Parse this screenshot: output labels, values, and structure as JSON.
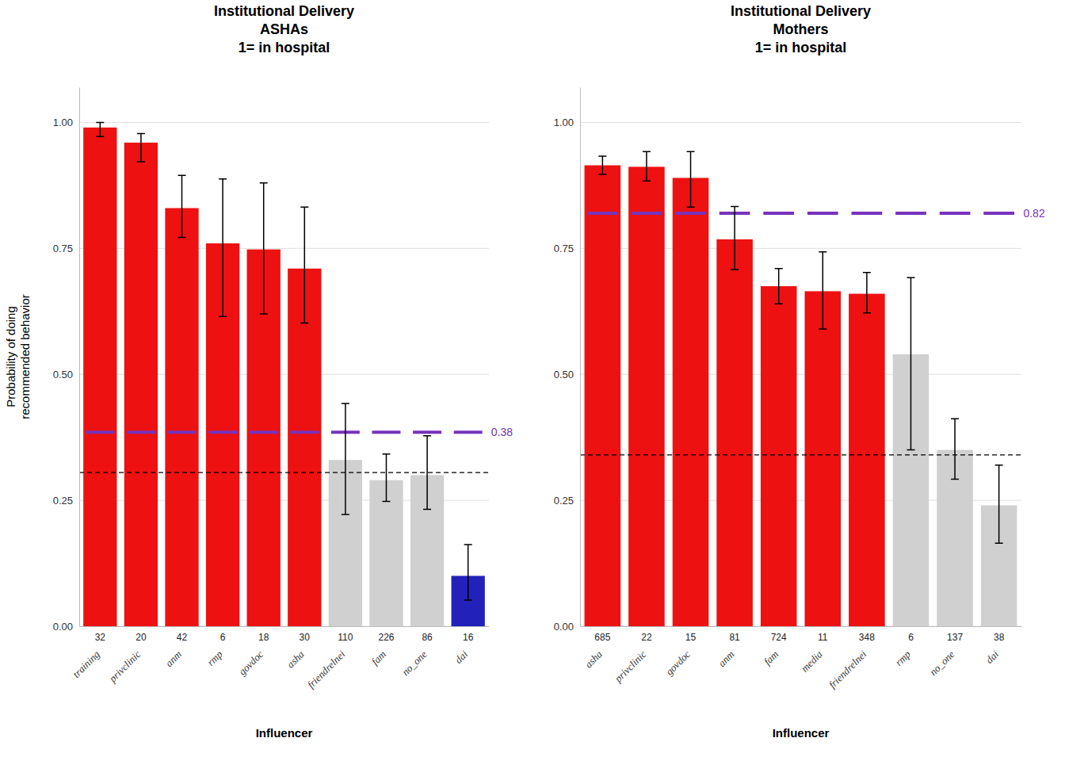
{
  "chart_data": [
    {
      "type": "bar",
      "title": "Institutional Delivery\nASHAs\n1= in hospital",
      "y_label": "Probability of doing\nrecommended behavior",
      "x_label": "Influencer",
      "categories": [
        "training",
        "privclinic",
        "anm",
        "rmp",
        "govdoc",
        "asha",
        "friendrelnei",
        "fam",
        "no_one",
        "dai"
      ],
      "counts": [
        32,
        20,
        42,
        6,
        18,
        30,
        110,
        226,
        86,
        16
      ],
      "values": [
        0.99,
        0.96,
        0.83,
        0.76,
        0.748,
        0.71,
        0.33,
        0.29,
        0.3,
        0.1
      ],
      "error_low": [
        0.018,
        0.038,
        0.058,
        0.145,
        0.128,
        0.108,
        0.108,
        0.042,
        0.068,
        0.048
      ],
      "error_high": [
        0.01,
        0.018,
        0.065,
        0.128,
        0.132,
        0.122,
        0.112,
        0.052,
        0.078,
        0.062
      ],
      "colors": [
        "#EE1111",
        "#EE1111",
        "#EE1111",
        "#EE1111",
        "#EE1111",
        "#EE1111",
        "#D0D0D0",
        "#D0D0D0",
        "#D0D0D0",
        "#2222BB"
      ],
      "reference_lines": [
        {
          "value": 0.385,
          "label": "0.38",
          "color": "#7733BB",
          "line_style": "solid"
        },
        {
          "value": 0.305,
          "color": "#000000",
          "line_style": "dashed"
        }
      ],
      "ylim": [
        0.0,
        1.07
      ],
      "yticks": [
        {
          "value": 0,
          "label": "0.00"
        },
        {
          "value": 0.25,
          "label": "0.25"
        },
        {
          "value": 0.5,
          "label": "0.50"
        },
        {
          "value": 0.75,
          "label": "0.75"
        },
        {
          "value": 1,
          "label": "1.00"
        }
      ],
      "grid": true
    },
    {
      "type": "bar",
      "title": "Institutional Delivery\nMothers\n1= in hospital",
      "x_label": "Influencer",
      "categories": [
        "asha",
        "privclinic",
        "govdoc",
        "anm",
        "fam",
        "media",
        "friendrelnei",
        "rmp",
        "no_one",
        "dai"
      ],
      "counts": [
        685,
        22,
        15,
        81,
        724,
        11,
        348,
        6,
        137,
        38
      ],
      "values": [
        0.915,
        0.912,
        0.89,
        0.768,
        0.675,
        0.665,
        0.66,
        0.54,
        0.35,
        0.24
      ],
      "error_low": [
        0.018,
        0.028,
        0.058,
        0.06,
        0.035,
        0.075,
        0.038,
        0.19,
        0.058,
        0.075
      ],
      "error_high": [
        0.018,
        0.03,
        0.052,
        0.065,
        0.035,
        0.078,
        0.042,
        0.152,
        0.062,
        0.08
      ],
      "colors": [
        "#EE1111",
        "#EE1111",
        "#EE1111",
        "#EE1111",
        "#EE1111",
        "#EE1111",
        "#EE1111",
        "#D0D0D0",
        "#D0D0D0",
        "#D0D0D0"
      ],
      "reference_lines": [
        {
          "value": 0.82,
          "label": "0.82",
          "color": "#7733BB",
          "line_style": "solid"
        },
        {
          "value": 0.34,
          "color": "#000000",
          "line_style": "dashed"
        }
      ],
      "ylim": [
        0.0,
        1.07
      ],
      "yticks": [
        {
          "value": 0,
          "label": "0.00"
        },
        {
          "value": 0.25,
          "label": "0.25"
        },
        {
          "value": 0.5,
          "label": "0.50"
        },
        {
          "value": 0.75,
          "label": "0.75"
        },
        {
          "value": 1,
          "label": "1.00"
        }
      ],
      "grid": true
    }
  ]
}
